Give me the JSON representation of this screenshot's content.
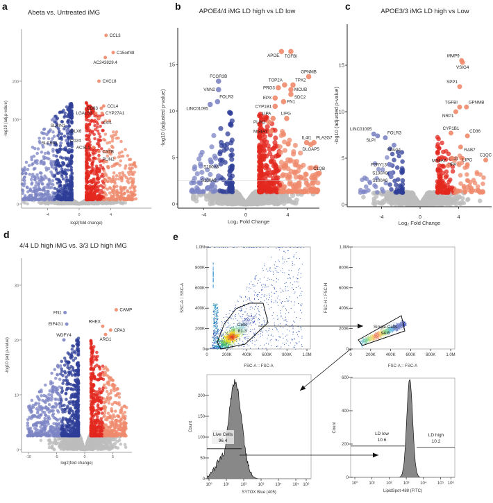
{
  "figure": {
    "panel_letters": [
      "a",
      "b",
      "c",
      "d",
      "e"
    ]
  },
  "colors": {
    "down": "#2f3f98",
    "down_light": "#7c84c4",
    "up": "#e3281f",
    "up_light": "#ef8a6c",
    "ns": "#bdbdbd",
    "label_highlight": "#e3281f"
  },
  "chart_data": [
    {
      "id": "a",
      "type": "scatter",
      "title": "Abeta vs. Untreated iMG",
      "xlabel": "log2(fold change)",
      "ylabel": "-log10 (adj.p-value)",
      "xticks": [
        "-4",
        "0",
        "4"
      ],
      "xtick_values": [
        -4,
        0,
        4
      ],
      "yticks": [
        "0",
        "100",
        "200"
      ],
      "ytick_values": [
        0,
        100,
        200
      ],
      "significance_threshold": 5,
      "fc_threshold": 0.6,
      "labeled_points": [
        {
          "gene": "CCL3",
          "x": 3.4,
          "y": 320,
          "dir": "up",
          "side": "right"
        },
        {
          "gene": "C15orf48",
          "x": 4.3,
          "y": 275,
          "dir": "up",
          "side": "right"
        },
        {
          "gene": "AC243829.4",
          "x": 3.3,
          "y": 262,
          "dir": "up",
          "side": "below"
        },
        {
          "gene": "CXCL8",
          "x": 2.5,
          "y": 200,
          "dir": "up",
          "side": "right"
        },
        {
          "gene": "CCL4",
          "x": 3.1,
          "y": 135,
          "dir": "up",
          "side": "right"
        },
        {
          "gene": "CD83",
          "x": 2.8,
          "y": 129,
          "dir": "up",
          "side": "left"
        },
        {
          "gene": "LGALS3",
          "x": 2.1,
          "y": 116,
          "dir": "up",
          "side": "left"
        },
        {
          "gene": "CYP27A1",
          "x": 2.9,
          "y": 116,
          "dir": "up",
          "side": "right"
        },
        {
          "gene": "IL4I1",
          "x": 2.5,
          "y": 103,
          "dir": "up",
          "side": "right"
        },
        {
          "gene": "SLAIN1",
          "x": -1.5,
          "y": 87,
          "dir": "down",
          "side": "aboveleft"
        },
        {
          "gene": "DLX6",
          "x": -1.5,
          "y": 86,
          "dir": "down",
          "side": "right"
        },
        {
          "gene": "CD24",
          "x": -1.6,
          "y": 75,
          "dir": "down",
          "side": "right"
        },
        {
          "gene": "SLC6A1",
          "x": -2.3,
          "y": 72,
          "dir": "down",
          "side": "left"
        },
        {
          "gene": "ACSL1",
          "x": 1.8,
          "y": 67,
          "dir": "up",
          "side": "left"
        },
        {
          "gene": "CSTB",
          "x": 2.5,
          "y": 62,
          "dir": "up",
          "side": "right"
        },
        {
          "gene": "PLIN2",
          "x": 2.5,
          "y": 53,
          "dir": "up",
          "side": "right"
        }
      ]
    },
    {
      "id": "b",
      "type": "scatter",
      "title": "APOE4/4 iMG LD high vs LD low",
      "xlabel": "Log₂ Fold Change",
      "ylabel": "-log10 (adjusted p-value)",
      "xticks": [
        "-4",
        "0",
        "4"
      ],
      "xtick_values": [
        -4,
        0,
        4
      ],
      "yticks": [
        "0",
        "5",
        "10",
        "15"
      ],
      "ytick_values": [
        0,
        5,
        10,
        15
      ],
      "significance_threshold": 1.3,
      "fc_threshold": 1.0,
      "threshold_line": 2.5,
      "labeled_points": [
        {
          "gene": "APOE",
          "x": 3.4,
          "y": 16.4,
          "dir": "up",
          "side": "belowleft"
        },
        {
          "gene": "TGFBI",
          "x": 4.3,
          "y": 16.4,
          "dir": "up",
          "side": "below"
        },
        {
          "gene": "GPNMB",
          "x": 6.0,
          "y": 13.7,
          "dir": "up",
          "side": "above"
        },
        {
          "gene": "TOP2A",
          "x": 3.7,
          "y": 12.8,
          "dir": "up",
          "side": "above"
        },
        {
          "gene": "TPX2",
          "x": 4.5,
          "y": 12.8,
          "dir": "up",
          "side": "above"
        },
        {
          "gene": "PRG3",
          "x": 3.1,
          "y": 12.5,
          "dir": "up",
          "side": "left"
        },
        {
          "gene": "MCUB",
          "x": 4.3,
          "y": 12.3,
          "dir": "up",
          "side": "right"
        },
        {
          "gene": "SDC2",
          "x": 4.3,
          "y": 11.8,
          "dir": "up",
          "side": "rightlow"
        },
        {
          "gene": "EPX",
          "x": 2.8,
          "y": 11.4,
          "dir": "up",
          "side": "left"
        },
        {
          "gene": "FN1",
          "x": 3.6,
          "y": 11.0,
          "dir": "up",
          "side": "right"
        },
        {
          "gene": "CYP1B1",
          "x": 2.8,
          "y": 10.5,
          "dir": "up",
          "side": "left"
        },
        {
          "gene": "LIPA",
          "x": 2.6,
          "y": 9.2,
          "dir": "up",
          "side": "aboveleft"
        },
        {
          "gene": "LIPG",
          "x": 3.9,
          "y": 9.2,
          "dir": "up",
          "side": "aboveleft2"
        },
        {
          "gene": "PLIN2",
          "x": 2.2,
          "y": 8.8,
          "dir": "up",
          "side": "left"
        },
        {
          "gene": "MS4A7",
          "x": 2.4,
          "y": 7.8,
          "dir": "up",
          "side": "left"
        },
        {
          "gene": "IL4I1",
          "x": 5.8,
          "y": 6.6,
          "dir": "up",
          "side": "above"
        },
        {
          "gene": "PLA2G7",
          "x": 6.5,
          "y": 6.6,
          "dir": "up",
          "side": "aboveright"
        },
        {
          "gene": "DLGAP5",
          "x": 6.2,
          "y": 6.4,
          "dir": "up",
          "side": "below"
        },
        {
          "gene": "C1QB",
          "x": 7.0,
          "y": 3.3,
          "dir": "up",
          "side": "above"
        },
        {
          "gene": "FCGR3B",
          "x": -2.6,
          "y": 13.2,
          "dir": "down",
          "side": "above"
        },
        {
          "gene": "VNN2",
          "x": -2.6,
          "y": 12.3,
          "dir": "down",
          "side": "left"
        },
        {
          "gene": "FOLR3",
          "x": -2.7,
          "y": 11.0,
          "dir": "down",
          "side": "aboveright"
        },
        {
          "gene": "LINC01095",
          "x": -3.4,
          "y": 10.7,
          "dir": "down",
          "side": "belowleft"
        },
        {
          "gene": "S100A6",
          "x": -3.3,
          "y": 4.5,
          "dir": "down",
          "side": "below"
        },
        {
          "gene": "S100A9",
          "x": -2.6,
          "y": 3.0,
          "dir": "down",
          "side": "belowleft"
        }
      ]
    },
    {
      "id": "c",
      "type": "scatter",
      "title": "APOE3/3 iMG LD high vs Low",
      "xlabel": "Log₂ Fold Change",
      "ylabel": "-log10 (adjusted p-value)",
      "xticks": [
        "-4",
        "0",
        "4"
      ],
      "xtick_values": [
        -4,
        0,
        4
      ],
      "yticks": [
        "0",
        "5",
        "10",
        "15"
      ],
      "ytick_values": [
        0,
        5,
        10,
        15
      ],
      "significance_threshold": 1.3,
      "fc_threshold": 1.5,
      "labeled_points": [
        {
          "gene": "MMP9",
          "x": 4.3,
          "y": 15.5,
          "dir": "up",
          "side": "aboveleft"
        },
        {
          "gene": "VSIG4",
          "x": 4.4,
          "y": 15.3,
          "dir": "up",
          "side": "below"
        },
        {
          "gene": "SPP1",
          "x": 4.1,
          "y": 12.7,
          "dir": "up",
          "side": "aboveleft"
        },
        {
          "gene": "TGFBI",
          "x": 4.1,
          "y": 10.5,
          "dir": "up",
          "side": "aboveleft"
        },
        {
          "gene": "GPNMB",
          "x": 4.8,
          "y": 10.5,
          "dir": "up",
          "side": "aboveright"
        },
        {
          "gene": "NRP1",
          "x": 3.7,
          "y": 10.0,
          "dir": "up",
          "side": "belowleft"
        },
        {
          "gene": "CYP1B1",
          "x": 3.2,
          "y": 7.7,
          "dir": "up",
          "side": "above"
        },
        {
          "gene": "CD36",
          "x": 4.9,
          "y": 7.4,
          "dir": "up",
          "side": "aboveright"
        },
        {
          "gene": "RAB7",
          "x": 4.2,
          "y": 6.2,
          "dir": "up",
          "side": "rightlow"
        },
        {
          "gene": "SCD",
          "x": 4.3,
          "y": 5.0,
          "dir": "up",
          "side": "aboveright"
        },
        {
          "gene": "LIPG",
          "x": 4.9,
          "y": 4.3,
          "dir": "up",
          "side": "above"
        },
        {
          "gene": "LIPA",
          "x": 3.3,
          "y": 5.0,
          "dir": "up",
          "side": "rightlow"
        },
        {
          "gene": "MS4A7",
          "x": 2.9,
          "y": 4.2,
          "dir": "up",
          "side": "aboveleft"
        },
        {
          "gene": "C1QC",
          "x": 6.8,
          "y": 4.8,
          "dir": "up",
          "side": "above"
        },
        {
          "gene": "LINC01095",
          "x": -4.8,
          "y": 7.6,
          "dir": "down",
          "side": "aboveleft"
        },
        {
          "gene": "SLPI",
          "x": -4.4,
          "y": 7.4,
          "dir": "down",
          "side": "belowleft"
        },
        {
          "gene": "FOLR3",
          "x": -3.6,
          "y": 7.2,
          "dir": "down",
          "side": "aboveright"
        },
        {
          "gene": "SPAG1",
          "x": -2.7,
          "y": 6.4,
          "dir": "down",
          "side": "below"
        },
        {
          "gene": "P2RY13",
          "x": -3.1,
          "y": 4.3,
          "dir": "down",
          "side": "left"
        },
        {
          "gene": "S100A9",
          "x": -3.0,
          "y": 3.4,
          "dir": "down",
          "side": "left"
        },
        {
          "gene": "S100A6",
          "x": -3.0,
          "y": 3.0,
          "dir": "down",
          "side": "leftlow"
        }
      ]
    },
    {
      "id": "d",
      "type": "scatter",
      "title": "4/4 LD high iMG vs. 3/3 LD high iMG",
      "xlabel": "log2(fold change)",
      "ylabel": "-log10 (adj.p-value)",
      "xticks": [
        "-10",
        "-5",
        "0",
        "5"
      ],
      "xtick_values": [
        -10,
        -5,
        0,
        5
      ],
      "yticks": [
        "0",
        "10",
        "20",
        "30"
      ],
      "ytick_values": [
        0,
        10,
        20,
        30
      ],
      "significance_threshold": 2.5,
      "fc_threshold": 0.8,
      "labeled_points": [
        {
          "gene": "FN1",
          "x": -3.5,
          "y": 25.0,
          "dir": "down",
          "side": "left"
        },
        {
          "gene": "EIF4G1",
          "x": -3.2,
          "y": 22.9,
          "dir": "down",
          "side": "left"
        },
        {
          "gene": "WDFY4",
          "x": -3.7,
          "y": 20.0,
          "dir": "down",
          "side": "above"
        },
        {
          "gene": "CAMP",
          "x": 5.6,
          "y": 25.5,
          "dir": "up",
          "side": "right",
          "highlight": true
        },
        {
          "gene": "RHEX",
          "x": 3.2,
          "y": 22.5,
          "dir": "up",
          "side": "aboveleft"
        },
        {
          "gene": "CPA3",
          "x": 4.6,
          "y": 21.8,
          "dir": "up",
          "side": "right"
        },
        {
          "gene": "ARG1",
          "x": 3.7,
          "y": 21.0,
          "dir": "up",
          "side": "below"
        }
      ]
    },
    {
      "id": "e1",
      "type": "scatter",
      "title": "",
      "xlabel": "FSC-A :: FSC-A",
      "ylabel": "SSC-A :: SSC-A",
      "xticks": [
        "0",
        "200K",
        "400K",
        "600K",
        "800K",
        "1.0M"
      ],
      "yticks": [
        "0",
        "200K",
        "400K",
        "600K",
        "800K",
        "1.0M"
      ],
      "gate": {
        "name": "Cells",
        "value": "81.3"
      }
    },
    {
      "id": "e2",
      "type": "scatter",
      "title": "",
      "xlabel": "FSC-A :: FSC-A",
      "ylabel": "FSC-H :: FSC-H",
      "xticks": [
        "0",
        "200K",
        "400K",
        "600K",
        "800K",
        "1.0M"
      ],
      "yticks": [
        "0",
        "200K",
        "400K",
        "600K",
        "800K",
        "1.0M"
      ],
      "gate": {
        "name": "Single Cells",
        "value": "94.6"
      }
    },
    {
      "id": "e3",
      "type": "area",
      "title": "",
      "xlabel": "SYTOX Blue  (405)",
      "ylabel": "Count",
      "xticks": [
        "10⁰",
        "10¹",
        "10²",
        "10³",
        "10⁴",
        "10⁵",
        "10⁶"
      ],
      "yticks": [
        "0",
        "50",
        "100",
        "150",
        "200"
      ],
      "ytick_values": [
        0,
        50,
        100,
        150,
        200
      ],
      "peak_log10": 1.5,
      "peak_count": 233,
      "gate": {
        "name": "Live Cells",
        "value": "96.4",
        "count_level": 72
      }
    },
    {
      "id": "e4",
      "type": "area",
      "title": "",
      "xlabel": "LipidSpot-488 (FITC)",
      "ylabel": "Count",
      "xticks": [
        "10⁰",
        "10¹",
        "10²",
        "10³",
        "10⁴",
        "10⁵",
        "10⁶"
      ],
      "yticks": [
        "0",
        "200",
        "400",
        "600"
      ],
      "ytick_values": [
        0,
        200,
        400,
        600
      ],
      "peak_log10": 3.2,
      "peak_count": 590,
      "gates": [
        {
          "name": "LD low",
          "value": "10.6",
          "count_level": 188
        },
        {
          "name": "LD high",
          "value": "10.2",
          "count_level": 188
        }
      ]
    }
  ]
}
